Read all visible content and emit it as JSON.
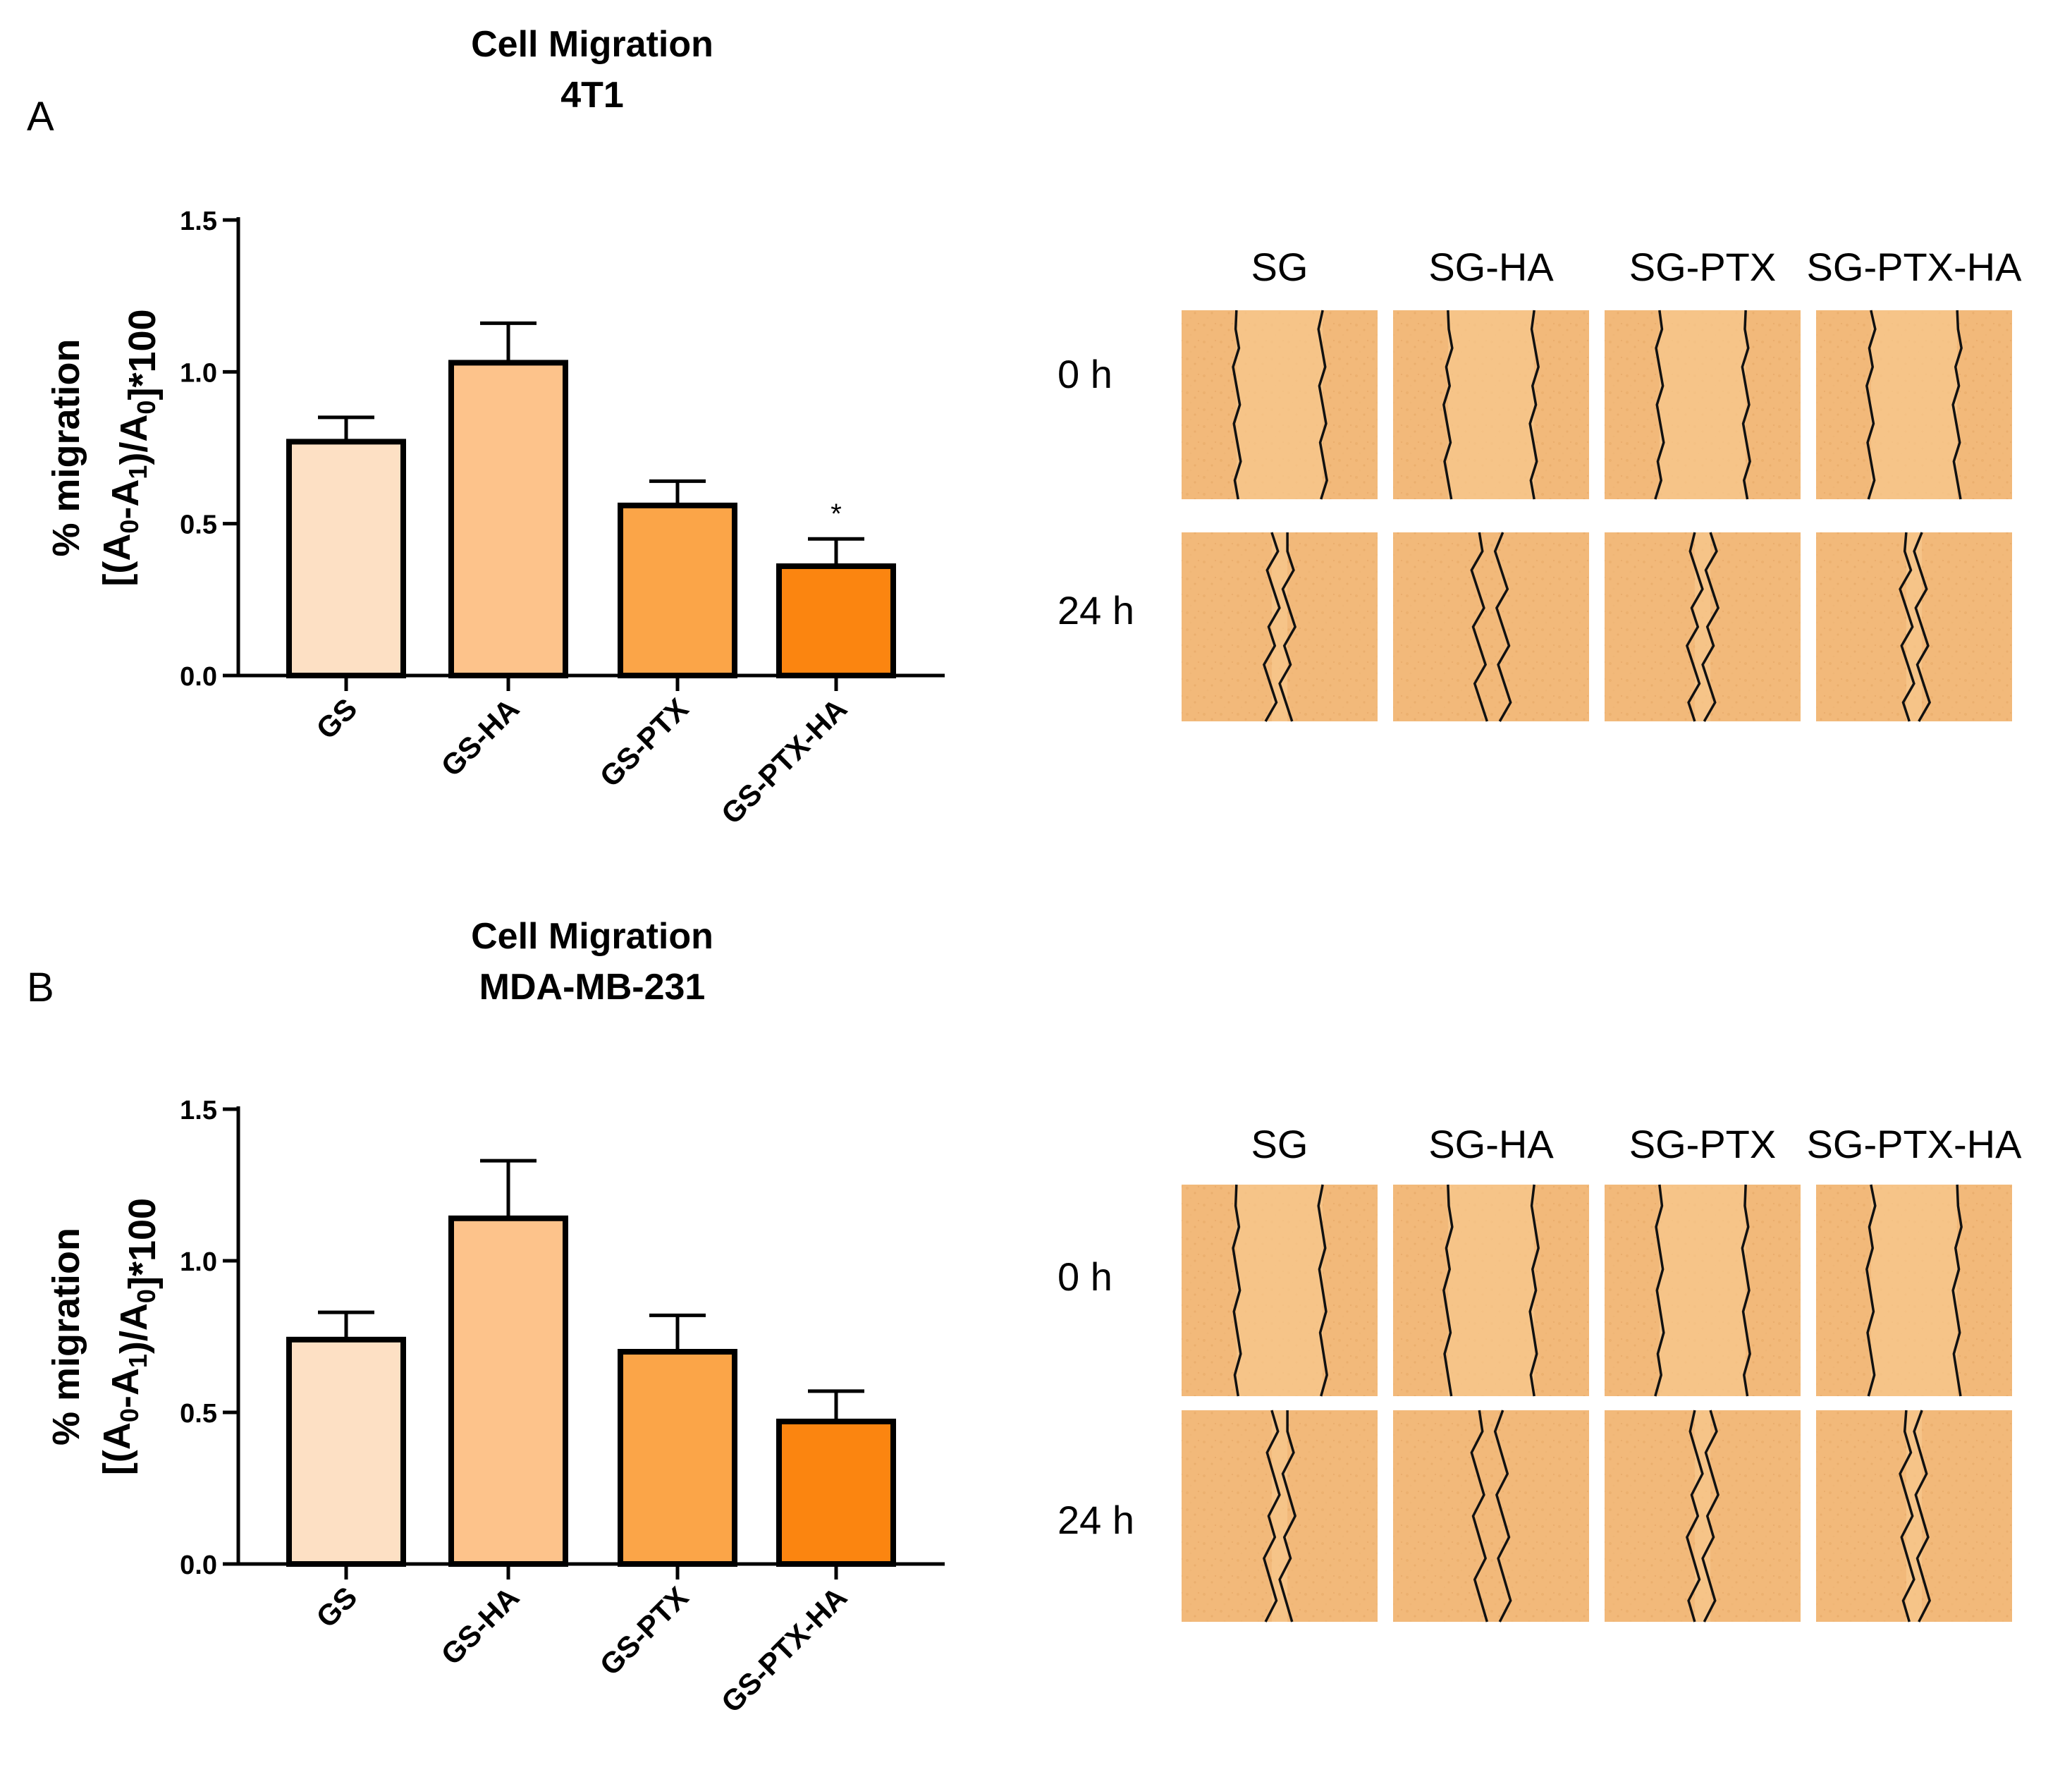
{
  "chart_data": [
    {
      "type": "bar",
      "panel": "A",
      "title": "Cell Migration",
      "subtitle": "4T1",
      "ylabel_line1": "% migration",
      "ylabel_line2": "[(A0-A1)/A0]*100",
      "ylim": [
        0,
        1.5
      ],
      "yticks": [
        "0.0",
        "0.5",
        "1.0",
        "1.5"
      ],
      "categories": [
        "GS",
        "GS-HA",
        "GS-PTX",
        "GS-PTX-HA"
      ],
      "values": [
        0.77,
        1.03,
        0.56,
        0.36
      ],
      "errors": [
        0.08,
        0.13,
        0.08,
        0.09
      ],
      "colors": [
        "#fde0c4",
        "#fdc38b",
        "#fba548",
        "#fb8510"
      ],
      "significance": [
        "",
        "",
        "",
        "*"
      ],
      "image_panel": {
        "columns": [
          "SG",
          "SG-HA",
          "SG-PTX",
          "SG-PTX-HA"
        ],
        "rows": [
          "0 h",
          "24 h"
        ]
      }
    },
    {
      "type": "bar",
      "panel": "B",
      "title": "Cell Migration",
      "subtitle": "MDA-MB-231",
      "ylabel_line1": "% migration",
      "ylabel_line2": "[(A0-A1)/A0]*100",
      "ylim": [
        0,
        1.5
      ],
      "yticks": [
        "0.0",
        "0.5",
        "1.0",
        "1.5"
      ],
      "categories": [
        "GS",
        "GS-HA",
        "GS-PTX",
        "GS-PTX-HA"
      ],
      "values": [
        0.74,
        1.14,
        0.7,
        0.47
      ],
      "errors": [
        0.09,
        0.19,
        0.12,
        0.1
      ],
      "colors": [
        "#fde0c4",
        "#fdc38b",
        "#fba548",
        "#fb8510"
      ],
      "significance": [
        "",
        "",
        "",
        ""
      ],
      "image_panel": {
        "columns": [
          "SG",
          "SG-HA",
          "SG-PTX",
          "SG-PTX-HA"
        ],
        "rows": [
          "0 h",
          "24 h"
        ]
      }
    }
  ]
}
